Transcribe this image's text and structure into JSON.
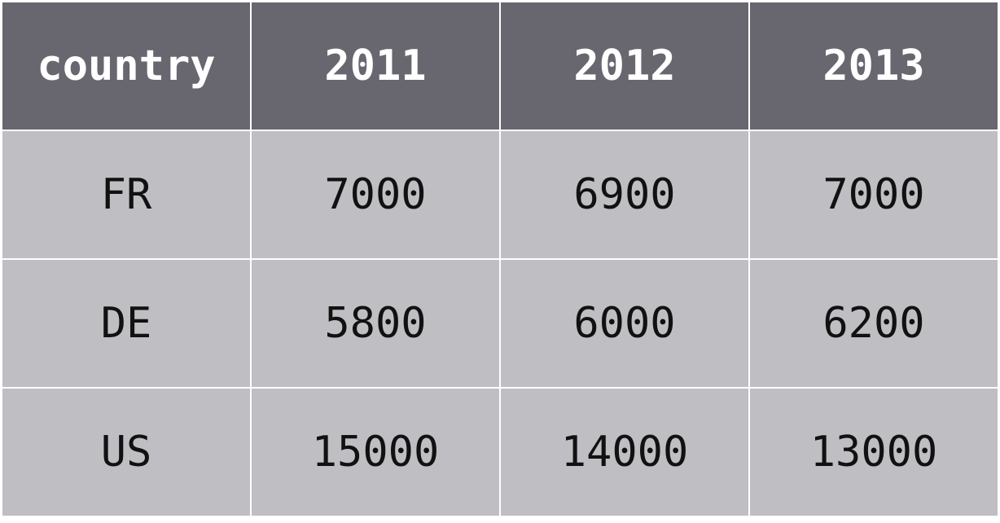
{
  "chart_data": {
    "type": "table",
    "columns": [
      "country",
      "2011",
      "2012",
      "2013"
    ],
    "rows": [
      [
        "FR",
        "7000",
        "6900",
        "7000"
      ],
      [
        "DE",
        "5800",
        "6000",
        "6200"
      ],
      [
        "US",
        "15000",
        "14000",
        "13000"
      ]
    ]
  },
  "colors": {
    "header_bg": "#68666f",
    "header_text": "#ffffff",
    "body_bg": "#bfbec3",
    "body_text": "#111111",
    "grid_lines": "#ffffff"
  }
}
